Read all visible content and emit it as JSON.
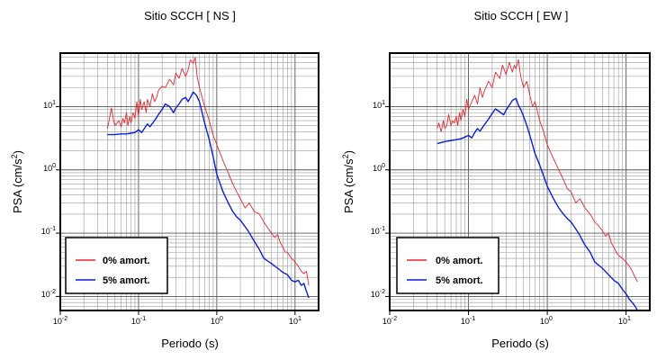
{
  "chart_data": [
    {
      "type": "line",
      "title": "Sitio SCCH [ NS ]",
      "xlabel": "Periodo (s)",
      "ylabel_main": "PSA (cm/s",
      "ylabel_sup": "2",
      "ylabel_close": ")",
      "xscale": "log",
      "yscale": "log",
      "xlim": [
        0.01,
        20
      ],
      "ylim": [
        0.006,
        70
      ],
      "grid": true,
      "legend_position": "bottom-left",
      "x_ticks": [
        {
          "value": 0.01,
          "base": "10",
          "exp": "-2"
        },
        {
          "value": 0.1,
          "base": "10",
          "exp": "-1"
        },
        {
          "value": 1,
          "base": "10",
          "exp": "0"
        },
        {
          "value": 10,
          "base": "10",
          "exp": "1"
        }
      ],
      "y_ticks": [
        {
          "value": 0.01,
          "base": "10",
          "exp": "-2"
        },
        {
          "value": 0.1,
          "base": "10",
          "exp": "-1"
        },
        {
          "value": 1,
          "base": "10",
          "exp": "0"
        },
        {
          "value": 10,
          "base": "10",
          "exp": "1"
        }
      ],
      "series": [
        {
          "name": "0% amort.",
          "color": "#e8262d",
          "x": [
            0.04,
            0.042,
            0.045,
            0.048,
            0.05,
            0.053,
            0.056,
            0.06,
            0.063,
            0.066,
            0.07,
            0.073,
            0.077,
            0.08,
            0.085,
            0.09,
            0.095,
            0.1,
            0.105,
            0.11,
            0.118,
            0.125,
            0.13,
            0.14,
            0.15,
            0.16,
            0.17,
            0.18,
            0.2,
            0.22,
            0.25,
            0.28,
            0.3,
            0.33,
            0.36,
            0.4,
            0.43,
            0.46,
            0.5,
            0.53,
            0.56,
            0.6,
            0.65,
            0.7,
            0.8,
            0.9,
            1.0,
            1.2,
            1.4,
            1.6,
            1.8,
            2.0,
            2.3,
            2.6,
            3.0,
            3.5,
            4.0,
            4.5,
            5.0,
            5.5,
            6.0,
            6.5,
            7.0,
            7.5,
            8.0,
            9.0,
            10,
            11,
            12,
            13,
            14,
            15
          ],
          "y": [
            4.5,
            6,
            9.5,
            6,
            5,
            5.5,
            6,
            4.8,
            6.5,
            5.5,
            8,
            5,
            7,
            5.5,
            8,
            6.5,
            12,
            7,
            13,
            9,
            12,
            8,
            13,
            10,
            16,
            12,
            14,
            18,
            21,
            20,
            27,
            22,
            34,
            28,
            40,
            30,
            38,
            55,
            48,
            60,
            30,
            20,
            14,
            10,
            6,
            3.5,
            2.5,
            1.4,
            0.9,
            0.6,
            0.45,
            0.35,
            0.25,
            0.3,
            0.22,
            0.2,
            0.15,
            0.12,
            0.1,
            0.085,
            0.095,
            0.07,
            0.06,
            0.05,
            0.05,
            0.04,
            0.035,
            0.03,
            0.025,
            0.023,
            0.025,
            0.015
          ]
        },
        {
          "name": "5% amort.",
          "color": "#0a1fd6",
          "x": [
            0.04,
            0.045,
            0.05,
            0.06,
            0.07,
            0.08,
            0.09,
            0.1,
            0.11,
            0.12,
            0.13,
            0.14,
            0.16,
            0.18,
            0.2,
            0.22,
            0.25,
            0.28,
            0.3,
            0.33,
            0.36,
            0.4,
            0.43,
            0.46,
            0.5,
            0.55,
            0.6,
            0.65,
            0.7,
            0.8,
            0.9,
            1.0,
            1.2,
            1.4,
            1.6,
            1.8,
            2.0,
            2.5,
            3.0,
            3.5,
            4.0,
            5.0,
            6.0,
            7.0,
            8.0,
            9.0,
            10,
            11,
            12,
            13,
            14,
            15
          ],
          "y": [
            3.6,
            3.6,
            3.6,
            3.7,
            3.7,
            3.8,
            3.9,
            4.3,
            3.9,
            4.6,
            5.3,
            4.8,
            6,
            7.5,
            9,
            11,
            10,
            8,
            9.5,
            11,
            13,
            14,
            12,
            14,
            17,
            15,
            12,
            8,
            5.5,
            3,
            1.6,
            0.85,
            0.45,
            0.3,
            0.22,
            0.18,
            0.16,
            0.11,
            0.075,
            0.055,
            0.04,
            0.033,
            0.028,
            0.024,
            0.022,
            0.018,
            0.017,
            0.018,
            0.015,
            0.016,
            0.012,
            0.0095
          ]
        }
      ]
    },
    {
      "type": "line",
      "title": "Sitio SCCH [ EW ]",
      "xlabel": "Periodo (s)",
      "ylabel_main": "PSA (cm/s",
      "ylabel_sup": "2",
      "ylabel_close": ")",
      "xscale": "log",
      "yscale": "log",
      "xlim": [
        0.01,
        20
      ],
      "ylim": [
        0.006,
        70
      ],
      "grid": true,
      "legend_position": "bottom-left",
      "x_ticks": [
        {
          "value": 0.01,
          "base": "10",
          "exp": "-2"
        },
        {
          "value": 0.1,
          "base": "10",
          "exp": "-1"
        },
        {
          "value": 1,
          "base": "10",
          "exp": "0"
        },
        {
          "value": 10,
          "base": "10",
          "exp": "1"
        }
      ],
      "y_ticks": [
        {
          "value": 0.01,
          "base": "10",
          "exp": "-2"
        },
        {
          "value": 0.1,
          "base": "10",
          "exp": "-1"
        },
        {
          "value": 1,
          "base": "10",
          "exp": "0"
        },
        {
          "value": 10,
          "base": "10",
          "exp": "1"
        }
      ],
      "series": [
        {
          "name": "0% amort.",
          "color": "#e8262d",
          "x": [
            0.04,
            0.042,
            0.045,
            0.048,
            0.05,
            0.053,
            0.056,
            0.06,
            0.063,
            0.066,
            0.07,
            0.073,
            0.077,
            0.08,
            0.085,
            0.09,
            0.095,
            0.1,
            0.11,
            0.12,
            0.13,
            0.14,
            0.15,
            0.16,
            0.18,
            0.2,
            0.22,
            0.25,
            0.27,
            0.3,
            0.33,
            0.36,
            0.38,
            0.4,
            0.43,
            0.46,
            0.5,
            0.55,
            0.6,
            0.65,
            0.7,
            0.8,
            0.9,
            1.0,
            1.2,
            1.4,
            1.6,
            1.8,
            2.0,
            2.3,
            2.6,
            3.0,
            3.5,
            4.0,
            4.5,
            5.0,
            5.5,
            6.0,
            6.5,
            7.0,
            7.5,
            8.0,
            9.0,
            10,
            11,
            12,
            13,
            14
          ],
          "y": [
            4.5,
            5.5,
            4,
            6,
            4.5,
            5,
            7.5,
            5,
            6,
            5.5,
            7,
            5,
            8,
            6,
            9,
            7,
            13,
            9,
            12,
            15,
            11,
            20,
            14,
            18,
            25,
            20,
            35,
            28,
            45,
            32,
            50,
            35,
            45,
            40,
            55,
            30,
            20,
            25,
            15,
            10,
            12,
            6,
            4,
            2.5,
            1.5,
            1.0,
            0.7,
            0.5,
            0.45,
            0.3,
            0.35,
            0.25,
            0.2,
            0.15,
            0.13,
            0.11,
            0.09,
            0.1,
            0.07,
            0.06,
            0.05,
            0.045,
            0.04,
            0.035,
            0.03,
            0.025,
            0.02,
            0.017
          ]
        },
        {
          "name": "5% amort.",
          "color": "#0a1fd6",
          "x": [
            0.04,
            0.045,
            0.05,
            0.06,
            0.07,
            0.08,
            0.09,
            0.1,
            0.11,
            0.12,
            0.13,
            0.14,
            0.16,
            0.18,
            0.2,
            0.22,
            0.25,
            0.28,
            0.3,
            0.33,
            0.36,
            0.4,
            0.43,
            0.46,
            0.5,
            0.55,
            0.6,
            0.65,
            0.7,
            0.8,
            0.9,
            1.0,
            1.2,
            1.4,
            1.6,
            1.8,
            2.0,
            2.5,
            3.0,
            3.5,
            4.0,
            5.0,
            6.0,
            7.0,
            8.0,
            9.0,
            10,
            11,
            12,
            13,
            14
          ],
          "y": [
            2.6,
            2.7,
            2.8,
            2.9,
            3.0,
            3.1,
            3.3,
            3.5,
            3.2,
            3.9,
            4.5,
            4.1,
            5.2,
            6.4,
            7.8,
            9.2,
            8.2,
            7.4,
            8.8,
            10.5,
            12.5,
            13.5,
            10.5,
            9,
            7,
            5,
            3.5,
            2.5,
            1.8,
            1.2,
            0.8,
            0.55,
            0.35,
            0.25,
            0.2,
            0.17,
            0.15,
            0.1,
            0.065,
            0.05,
            0.035,
            0.028,
            0.022,
            0.018,
            0.016,
            0.013,
            0.011,
            0.009,
            0.008,
            0.007,
            0.006
          ]
        }
      ]
    }
  ]
}
